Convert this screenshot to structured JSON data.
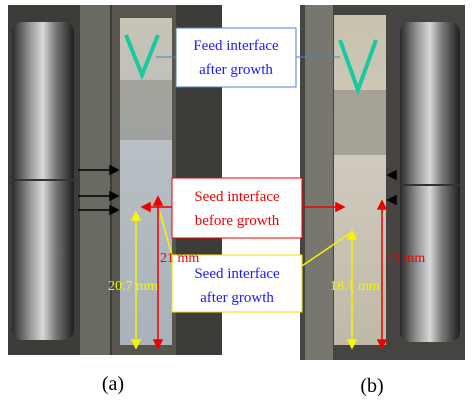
{
  "annotations": {
    "feed": {
      "lines": [
        "Feed interface",
        "after growth"
      ]
    },
    "seed_before": {
      "lines": [
        "Seed interface",
        "before growth"
      ]
    },
    "seed_after": {
      "lines": [
        "Seed interface",
        "after growth"
      ]
    }
  },
  "measurements": {
    "a_total": "21 mm",
    "a_seed": "20.7 mm",
    "b_total": "23 mm",
    "b_seed": "18.1 mm"
  },
  "panels": {
    "a": "(a)",
    "b": "(b)"
  }
}
